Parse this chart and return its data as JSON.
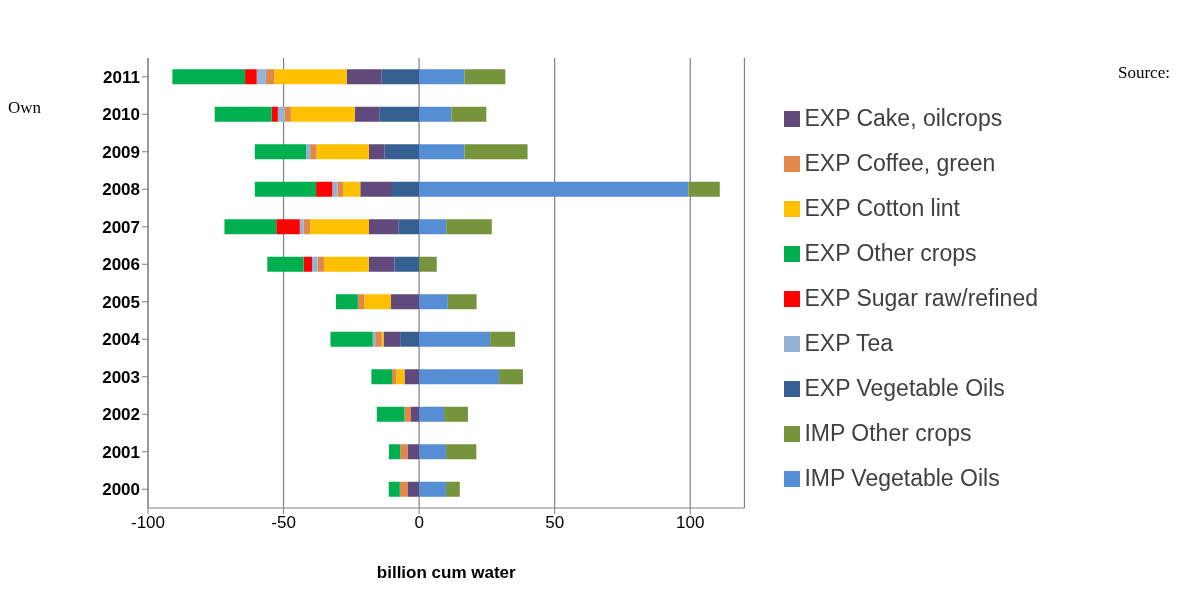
{
  "chart_data": {
    "type": "bar",
    "orientation": "horizontal",
    "stacked": true,
    "xlabel": "billion cum water",
    "categories": [
      "2011",
      "2010",
      "2009",
      "2008",
      "2007",
      "2006",
      "2005",
      "2004",
      "2003",
      "2002",
      "2001",
      "2000"
    ],
    "series": [
      {
        "name": "IMP Vegetable Oils",
        "color": "#558ed5",
        "values": [
          16.7,
          11.9,
          16.7,
          99.3,
          10,
          0,
          10.6,
          26.2,
          29.5,
          9.2,
          9.9,
          9.9
        ]
      },
      {
        "name": "IMP Other crops",
        "color": "#77933c",
        "values": [
          15.1,
          12.9,
          23.3,
          11.6,
          16.8,
          6.5,
          10.6,
          9.2,
          8.8,
          8.8,
          11.2,
          5.1
        ]
      },
      {
        "name": "EXP Vegetable Oils",
        "color": "#376092",
        "values": [
          -13.8,
          -14.5,
          -12.7,
          -10,
          -7.7,
          -9.1,
          0,
          -7,
          0,
          0,
          0,
          0
        ]
      },
      {
        "name": "EXP Cake, oilcrops",
        "color": "#604a7b",
        "values": [
          -12.9,
          -9.2,
          -5.8,
          -11.7,
          -10.8,
          -9.5,
          -10.4,
          -6.1,
          -5.4,
          -3,
          -4.3,
          -4.1
        ]
      },
      {
        "name": "EXP Cotton lint",
        "color": "#ffc000",
        "values": [
          -26.7,
          -23.6,
          -19.4,
          -6.4,
          -21.7,
          -16.5,
          -9.9,
          -0.7,
          -3,
          0,
          0,
          0
        ]
      },
      {
        "name": "EXP Coffee, green",
        "color": "#e0874a",
        "values": [
          -3.1,
          -2.4,
          -2.3,
          -2,
          -2.4,
          -2.4,
          -2.3,
          -2.4,
          -1.6,
          -2.4,
          -2.7,
          -3
        ]
      },
      {
        "name": "EXP Tea",
        "color": "#95b3d7",
        "values": [
          -3.4,
          -2.4,
          -1.4,
          -1.9,
          -1.4,
          -2,
          0,
          -0.9,
          0,
          0,
          0,
          0
        ]
      },
      {
        "name": "EXP Sugar raw/refined",
        "color": "#ff0000",
        "values": [
          -4.3,
          -2.3,
          0,
          -6,
          -8.7,
          -3.1,
          0,
          0,
          0,
          0,
          0,
          0
        ]
      },
      {
        "name": "EXP Other crops",
        "color": "#00b050",
        "values": [
          -26.8,
          -21,
          -19,
          -22.6,
          -19.1,
          -13.4,
          -8.1,
          -15.6,
          -7.6,
          -10.2,
          -4.1,
          -4.1
        ]
      }
    ],
    "xlim": [
      -100,
      120
    ],
    "xticks": [
      -100,
      -50,
      0,
      50,
      100
    ],
    "grid": "x",
    "legend": "right",
    "annotations": [
      "Source:",
      "Own"
    ]
  }
}
